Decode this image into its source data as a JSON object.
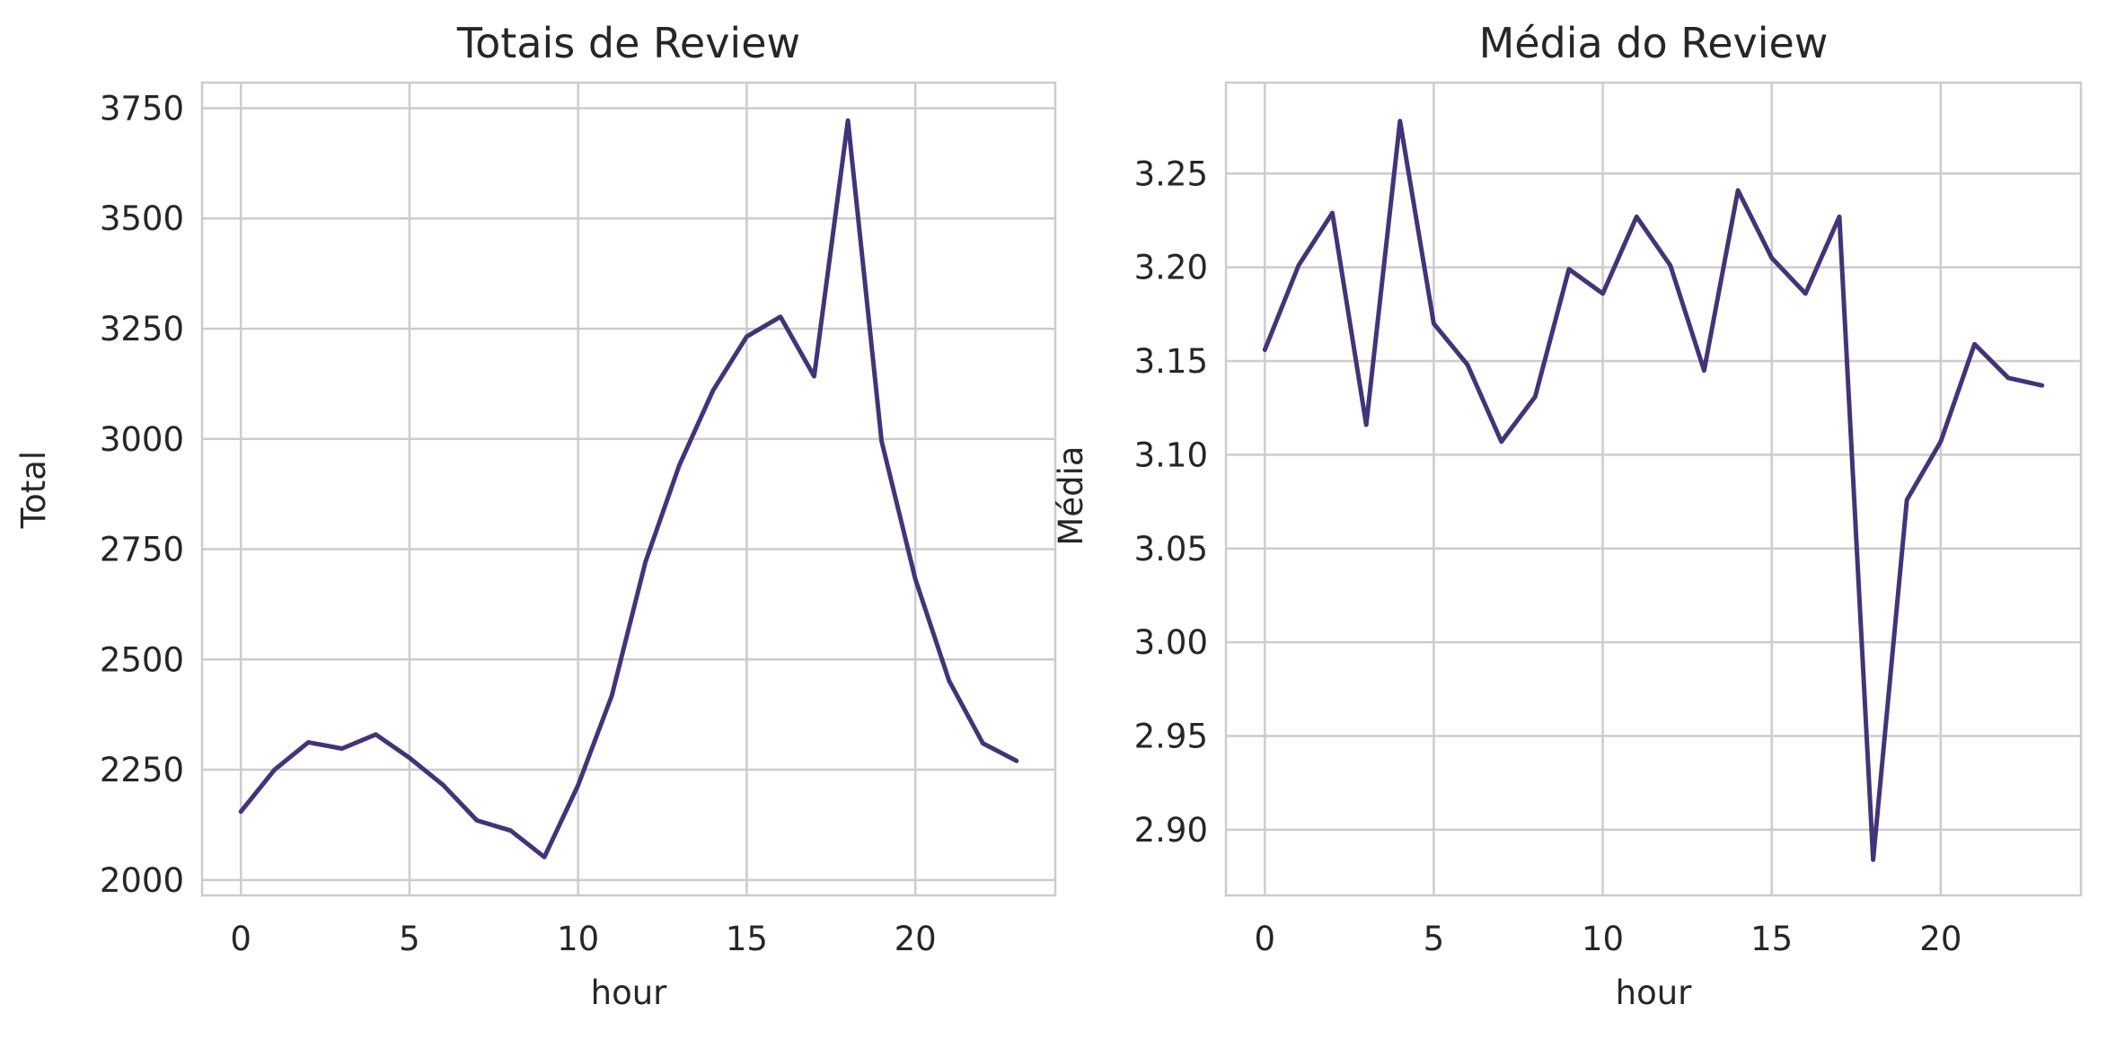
{
  "colors": {
    "series": "#433378",
    "grid": "#cccccc",
    "text": "#262626"
  },
  "chart_data": [
    {
      "type": "line",
      "title": "Totais de Review",
      "xlabel": "hour",
      "ylabel": "Total",
      "xlim": [
        -1.15,
        24.15
      ],
      "ylim": [
        1965,
        3808
      ],
      "xticks": [
        0,
        5,
        10,
        15,
        20
      ],
      "yticks": [
        2000,
        2250,
        2500,
        2750,
        3000,
        3250,
        3500,
        3750
      ],
      "ytick_labels": [
        "2000",
        "2250",
        "2500",
        "2750",
        "3000",
        "3250",
        "3500",
        "3750"
      ],
      "grid": true,
      "x": [
        0,
        1,
        2,
        3,
        4,
        5,
        6,
        7,
        8,
        9,
        10,
        11,
        12,
        13,
        14,
        15,
        16,
        17,
        18,
        19,
        20,
        21,
        22,
        23
      ],
      "values": [
        2155,
        2250,
        2312,
        2298,
        2330,
        2277,
        2215,
        2135,
        2112,
        2052,
        2215,
        2418,
        2722,
        2940,
        3110,
        3232,
        3277,
        3142,
        3722,
        2995,
        2682,
        2452,
        2310,
        2270
      ]
    },
    {
      "type": "line",
      "title": "Média do Review",
      "xlabel": "hour",
      "ylabel": "Média",
      "xlim": [
        -1.15,
        24.15
      ],
      "ylim": [
        2.865,
        2.2985
      ],
      "ylim_note": "",
      "xticks": [
        0,
        5,
        10,
        15,
        20
      ],
      "yticks": [
        2.9,
        2.95,
        3.0,
        3.05,
        3.1,
        3.15,
        3.2,
        3.25
      ],
      "ytick_labels": [
        "2.90",
        "2.95",
        "3.00",
        "3.05",
        "3.10",
        "3.15",
        "3.20",
        "3.25"
      ],
      "grid": true,
      "x": [
        0,
        1,
        2,
        3,
        4,
        5,
        6,
        7,
        8,
        9,
        10,
        11,
        12,
        13,
        14,
        15,
        16,
        17,
        18,
        19,
        20,
        21,
        22,
        23
      ],
      "values": [
        3.156,
        3.201,
        3.229,
        3.116,
        3.278,
        3.17,
        3.148,
        3.107,
        3.131,
        3.199,
        3.186,
        3.227,
        3.201,
        3.145,
        3.241,
        3.205,
        3.186,
        3.227,
        2.884,
        3.076,
        3.107,
        3.159,
        3.141,
        3.137
      ]
    }
  ]
}
